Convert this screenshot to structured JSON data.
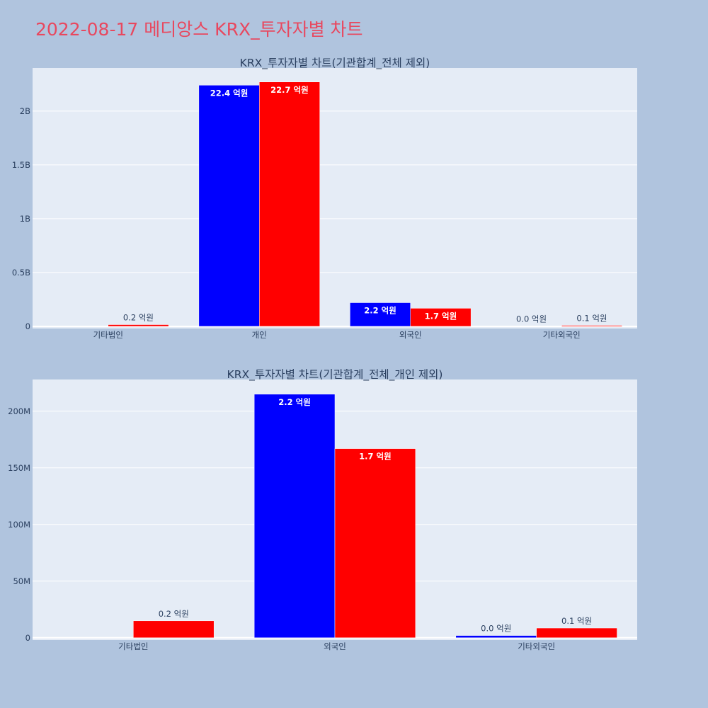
{
  "page": {
    "title": "2022-08-17 메디앙스 KRX_투자자별 차트"
  },
  "colors": {
    "background": "#b0c4de",
    "plot_bg": "#e5ecf6",
    "title": "#e8485f",
    "series_a": "#0000ff",
    "series_b": "#ff0000"
  },
  "chart_data": [
    {
      "type": "bar",
      "title": "KRX_투자자별 차트(기관합계_전체 제외)",
      "categories": [
        "기타법인",
        "개인",
        "외국인",
        "기타외국인"
      ],
      "series": [
        {
          "color": "#0000ff",
          "values": [
            0,
            2240000000,
            220000000,
            2000000
          ],
          "labels": [
            "",
            "22.4 억원",
            "2.2 억원",
            "0.0 억원"
          ]
        },
        {
          "color": "#ff0000",
          "values": [
            16000000,
            2270000000,
            168000000,
            9000000
          ],
          "labels": [
            "0.2 억원",
            "22.7 억원",
            "1.7 억원",
            "0.1 억원"
          ]
        }
      ],
      "ylim": [
        -20000000,
        2400000000
      ],
      "yticks": [
        0,
        500000000,
        1000000000,
        1500000000,
        2000000000
      ],
      "ytick_labels": [
        "0",
        "0.5B",
        "1B",
        "1.5B",
        "2B"
      ],
      "grid": true
    },
    {
      "type": "bar",
      "title": "KRX_투자자별 차트(기관합계_전체_개인 제외)",
      "categories": [
        "기타법인",
        "외국인",
        "기타외국인"
      ],
      "series": [
        {
          "color": "#0000ff",
          "values": [
            0,
            215000000,
            2000000
          ],
          "labels": [
            "",
            "2.2 억원",
            "0.0 억원"
          ]
        },
        {
          "color": "#ff0000",
          "values": [
            15000000,
            167000000,
            8600000
          ],
          "labels": [
            "0.2 억원",
            "1.7 억원",
            "0.1 억원"
          ]
        }
      ],
      "ylim": [
        -2000000,
        228000000
      ],
      "yticks": [
        0,
        50000000,
        100000000,
        150000000,
        200000000
      ],
      "ytick_labels": [
        "0",
        "50M",
        "100M",
        "150M",
        "200M"
      ],
      "grid": true
    }
  ]
}
